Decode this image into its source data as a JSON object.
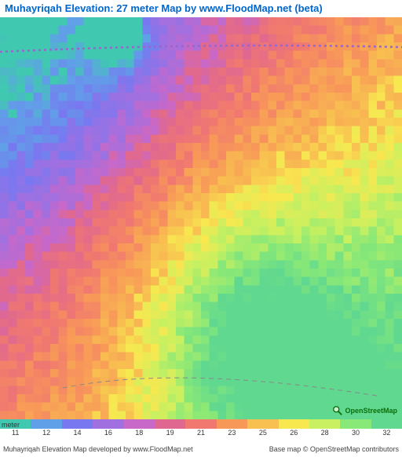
{
  "title": "Muhayriqah Elevation: 27 meter Map by www.FloodMap.net (beta)",
  "attribution": {
    "left": "Muhayriqah Elevation Map developed by www.FloodMap.net",
    "right": "Base map © OpenStreetMap contributors",
    "osm_label": "OpenStreetMap"
  },
  "map": {
    "type": "heatmap",
    "grid_size": 48,
    "background_color": "#ffffff",
    "dotted_border_color": "#9966cc",
    "dashed_path_color": "#888888",
    "elevation_range": [
      11,
      32
    ],
    "color_stops": [
      {
        "elev": 11,
        "color": "#40c8b0"
      },
      {
        "elev": 12,
        "color": "#60a0e8"
      },
      {
        "elev": 14,
        "color": "#7878f0"
      },
      {
        "elev": 16,
        "color": "#a070e0"
      },
      {
        "elev": 18,
        "color": "#c868c8"
      },
      {
        "elev": 19,
        "color": "#e06890"
      },
      {
        "elev": 21,
        "color": "#f07870"
      },
      {
        "elev": 23,
        "color": "#f89858"
      },
      {
        "elev": 25,
        "color": "#f8c050"
      },
      {
        "elev": 26,
        "color": "#f8e850"
      },
      {
        "elev": 28,
        "color": "#c8f060"
      },
      {
        "elev": 30,
        "color": "#88e878"
      },
      {
        "elev": 32,
        "color": "#60d890"
      }
    ]
  },
  "legend": {
    "unit_label": "meter",
    "values": [
      11,
      12,
      14,
      16,
      18,
      19,
      21,
      23,
      25,
      26,
      28,
      30,
      32
    ],
    "colors": [
      "#40c8b0",
      "#60a0e8",
      "#7878f0",
      "#a070e0",
      "#c868c8",
      "#e06890",
      "#f07870",
      "#f89858",
      "#f8c050",
      "#f8e850",
      "#c8f060",
      "#88e878",
      "#60d890"
    ]
  }
}
